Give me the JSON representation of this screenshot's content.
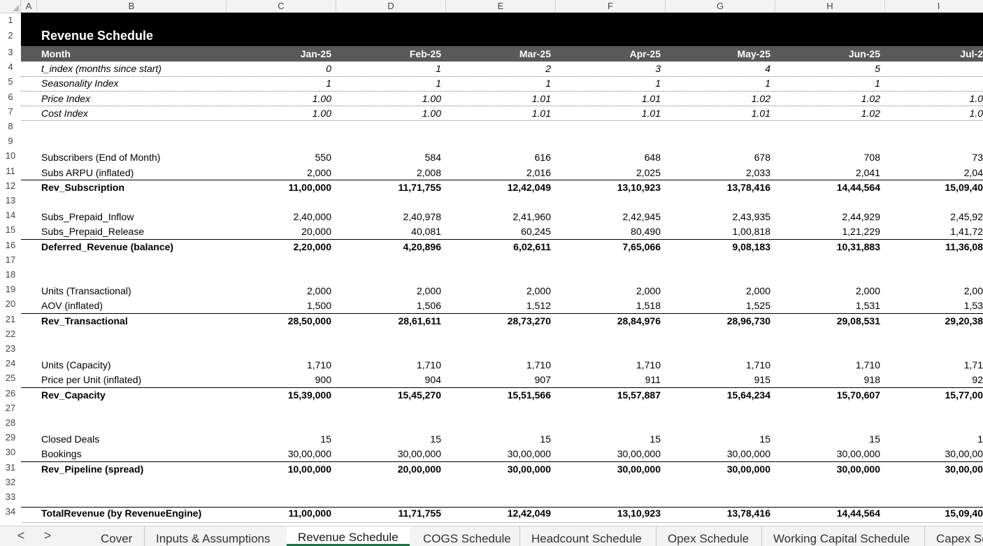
{
  "columns": [
    "A",
    "B",
    "C",
    "D",
    "E",
    "F",
    "G",
    "H",
    "I"
  ],
  "row_numbers": [
    "1",
    "2",
    "3",
    "4",
    "5",
    "6",
    "7",
    "8",
    "9",
    "10",
    "11",
    "12",
    "13",
    "14",
    "15",
    "16",
    "17",
    "18",
    "19",
    "20",
    "21",
    "22",
    "23",
    "24",
    "25",
    "26",
    "27",
    "28",
    "29",
    "30",
    "31",
    "32",
    "33",
    "34"
  ],
  "title": "Revenue Schedule",
  "rows": [
    {
      "label": "Month",
      "values": [
        "Jan-25",
        "Feb-25",
        "Mar-25",
        "Apr-25",
        "May-25",
        "Jun-25",
        "Jul-2"
      ]
    },
    {
      "label": "t_index (months since start)",
      "values": [
        "0",
        "1",
        "2",
        "3",
        "4",
        "5",
        ""
      ]
    },
    {
      "label": "Seasonality Index",
      "values": [
        "1",
        "1",
        "1",
        "1",
        "1",
        "1",
        ""
      ]
    },
    {
      "label": "Price Index",
      "values": [
        "1.00",
        "1.00",
        "1.01",
        "1.01",
        "1.02",
        "1.02",
        "1.0"
      ]
    },
    {
      "label": "Cost Index",
      "values": [
        "1.00",
        "1.00",
        "1.01",
        "1.01",
        "1.01",
        "1.02",
        "1.0"
      ]
    },
    {
      "label": "Subscribers (End of Month)",
      "values": [
        "550",
        "584",
        "616",
        "648",
        "678",
        "708",
        "73"
      ]
    },
    {
      "label": "Subs ARPU (inflated)",
      "values": [
        "2,000",
        "2,008",
        "2,016",
        "2,025",
        "2,033",
        "2,041",
        "2,04"
      ]
    },
    {
      "label": "Rev_Subscription",
      "values": [
        "11,00,000",
        "11,71,755",
        "12,42,049",
        "13,10,923",
        "13,78,416",
        "14,44,564",
        "15,09,40"
      ]
    },
    {
      "label": "Subs_Prepaid_Inflow",
      "values": [
        "2,40,000",
        "2,40,978",
        "2,41,960",
        "2,42,945",
        "2,43,935",
        "2,44,929",
        "2,45,92"
      ]
    },
    {
      "label": "Subs_Prepaid_Release",
      "values": [
        "20,000",
        "40,081",
        "60,245",
        "80,490",
        "1,00,818",
        "1,21,229",
        "1,41,72"
      ]
    },
    {
      "label": "Deferred_Revenue (balance)",
      "values": [
        "2,20,000",
        "4,20,896",
        "6,02,611",
        "7,65,066",
        "9,08,183",
        "10,31,883",
        "11,36,08"
      ]
    },
    {
      "label": "Units (Transactional)",
      "values": [
        "2,000",
        "2,000",
        "2,000",
        "2,000",
        "2,000",
        "2,000",
        "2,00"
      ]
    },
    {
      "label": "AOV (inflated)",
      "values": [
        "1,500",
        "1,506",
        "1,512",
        "1,518",
        "1,525",
        "1,531",
        "1,53"
      ]
    },
    {
      "label": "Rev_Transactional",
      "values": [
        "28,50,000",
        "28,61,611",
        "28,73,270",
        "28,84,976",
        "28,96,730",
        "29,08,531",
        "29,20,38"
      ]
    },
    {
      "label": "Units (Capacity)",
      "values": [
        "1,710",
        "1,710",
        "1,710",
        "1,710",
        "1,710",
        "1,710",
        "1,71"
      ]
    },
    {
      "label": "Price per Unit (inflated)",
      "values": [
        "900",
        "904",
        "907",
        "911",
        "915",
        "918",
        "92"
      ]
    },
    {
      "label": "Rev_Capacity",
      "values": [
        "15,39,000",
        "15,45,270",
        "15,51,566",
        "15,57,887",
        "15,64,234",
        "15,70,607",
        "15,77,00"
      ]
    },
    {
      "label": "Closed Deals",
      "values": [
        "15",
        "15",
        "15",
        "15",
        "15",
        "15",
        "1"
      ]
    },
    {
      "label": "Bookings",
      "values": [
        "30,00,000",
        "30,00,000",
        "30,00,000",
        "30,00,000",
        "30,00,000",
        "30,00,000",
        "30,00,00"
      ]
    },
    {
      "label": "Rev_Pipeline (spread)",
      "values": [
        "10,00,000",
        "20,00,000",
        "30,00,000",
        "30,00,000",
        "30,00,000",
        "30,00,000",
        "30,00,00"
      ]
    },
    {
      "label": "TotalRevenue (by RevenueEngine)",
      "values": [
        "11,00,000",
        "11,71,755",
        "12,42,049",
        "13,10,923",
        "13,78,416",
        "14,44,564",
        "15,09,40"
      ]
    }
  ],
  "tabs": {
    "nav_prev": "<",
    "nav_next": ">",
    "items": [
      "Cover",
      "Inputs & Assumptions",
      "Revenue Schedule",
      "COGS Schedule",
      "Headcount Schedule",
      "Opex Schedule",
      "Working Capital Schedule",
      "Capex Sc"
    ],
    "active": "Revenue Schedule"
  }
}
